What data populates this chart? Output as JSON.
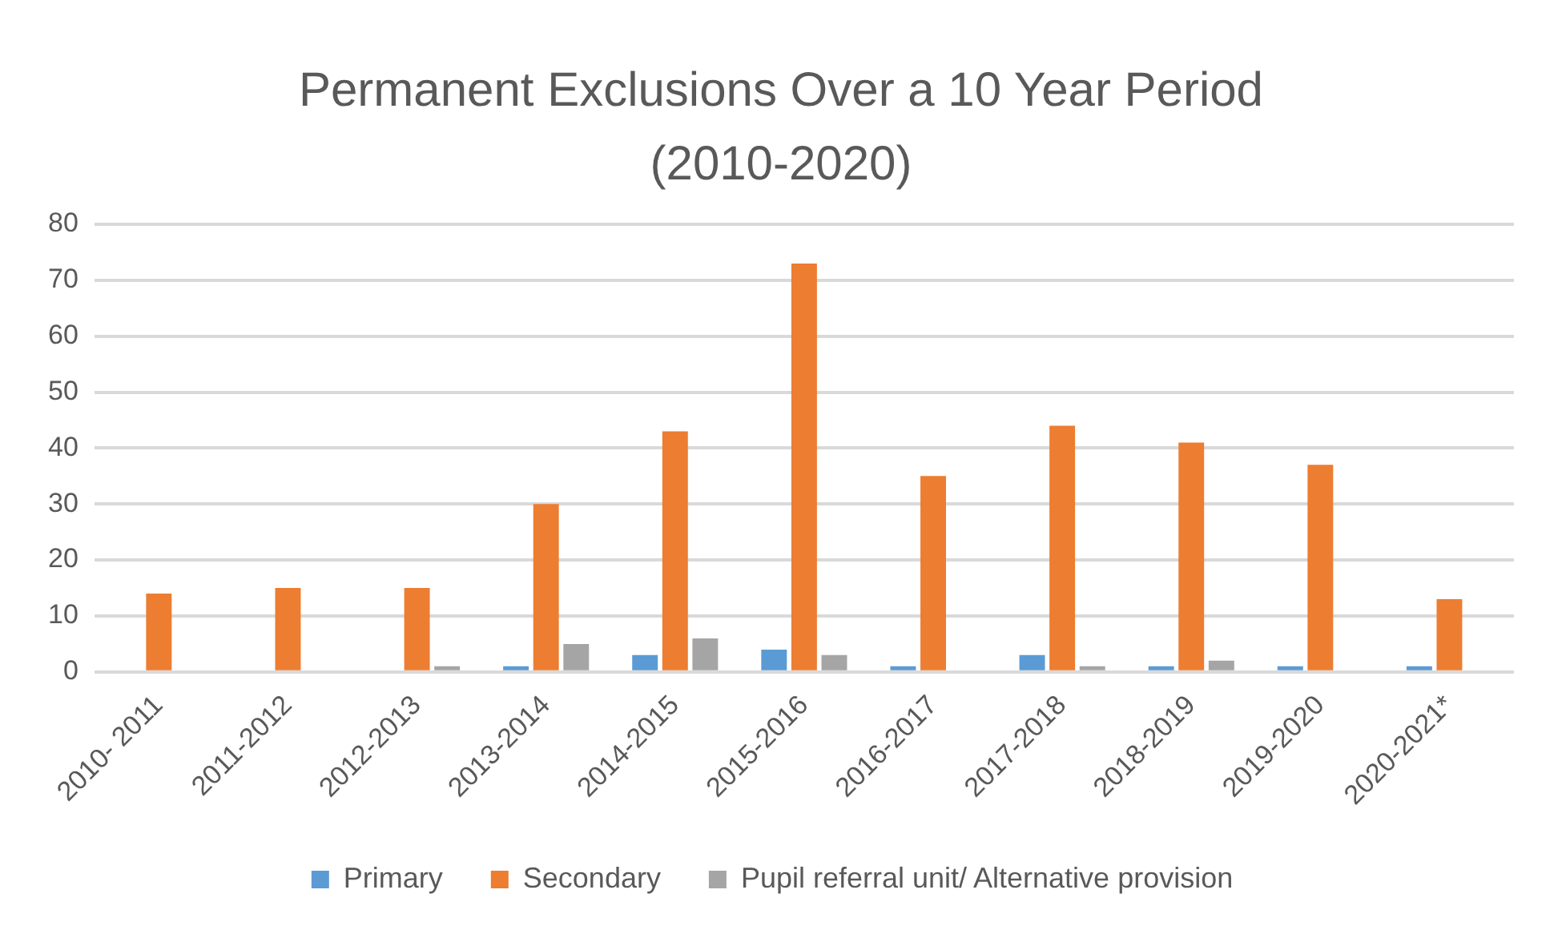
{
  "chart_data": {
    "type": "bar",
    "title": "Permanent Exclusions Over a 10 Year Period (2010-2020)",
    "categories": [
      "2010- 2011",
      "2011-2012",
      "2012-2013",
      "2013-2014",
      "2014-2015",
      "2015-2016",
      "2016-2017",
      "2017-2018",
      "2018-2019",
      "2019-2020",
      "2020-2021*"
    ],
    "series": [
      {
        "name": "Primary",
        "color": "#5b9bd5",
        "values": [
          0,
          0,
          0,
          1,
          3,
          4,
          1,
          3,
          1,
          1,
          1
        ]
      },
      {
        "name": "Secondary",
        "color": "#ed7d31",
        "values": [
          14,
          15,
          15,
          30,
          43,
          73,
          35,
          44,
          41,
          37,
          13
        ]
      },
      {
        "name": "Pupil referral unit/ Alternative provision",
        "color": "#a5a5a5",
        "values": [
          0,
          0,
          1,
          5,
          6,
          3,
          0,
          1,
          2,
          0,
          0
        ]
      }
    ],
    "ylim": [
      0,
      80
    ],
    "yticks": [
      0,
      10,
      20,
      30,
      40,
      50,
      60,
      70,
      80
    ],
    "grid": "y",
    "legend": "bottom"
  }
}
